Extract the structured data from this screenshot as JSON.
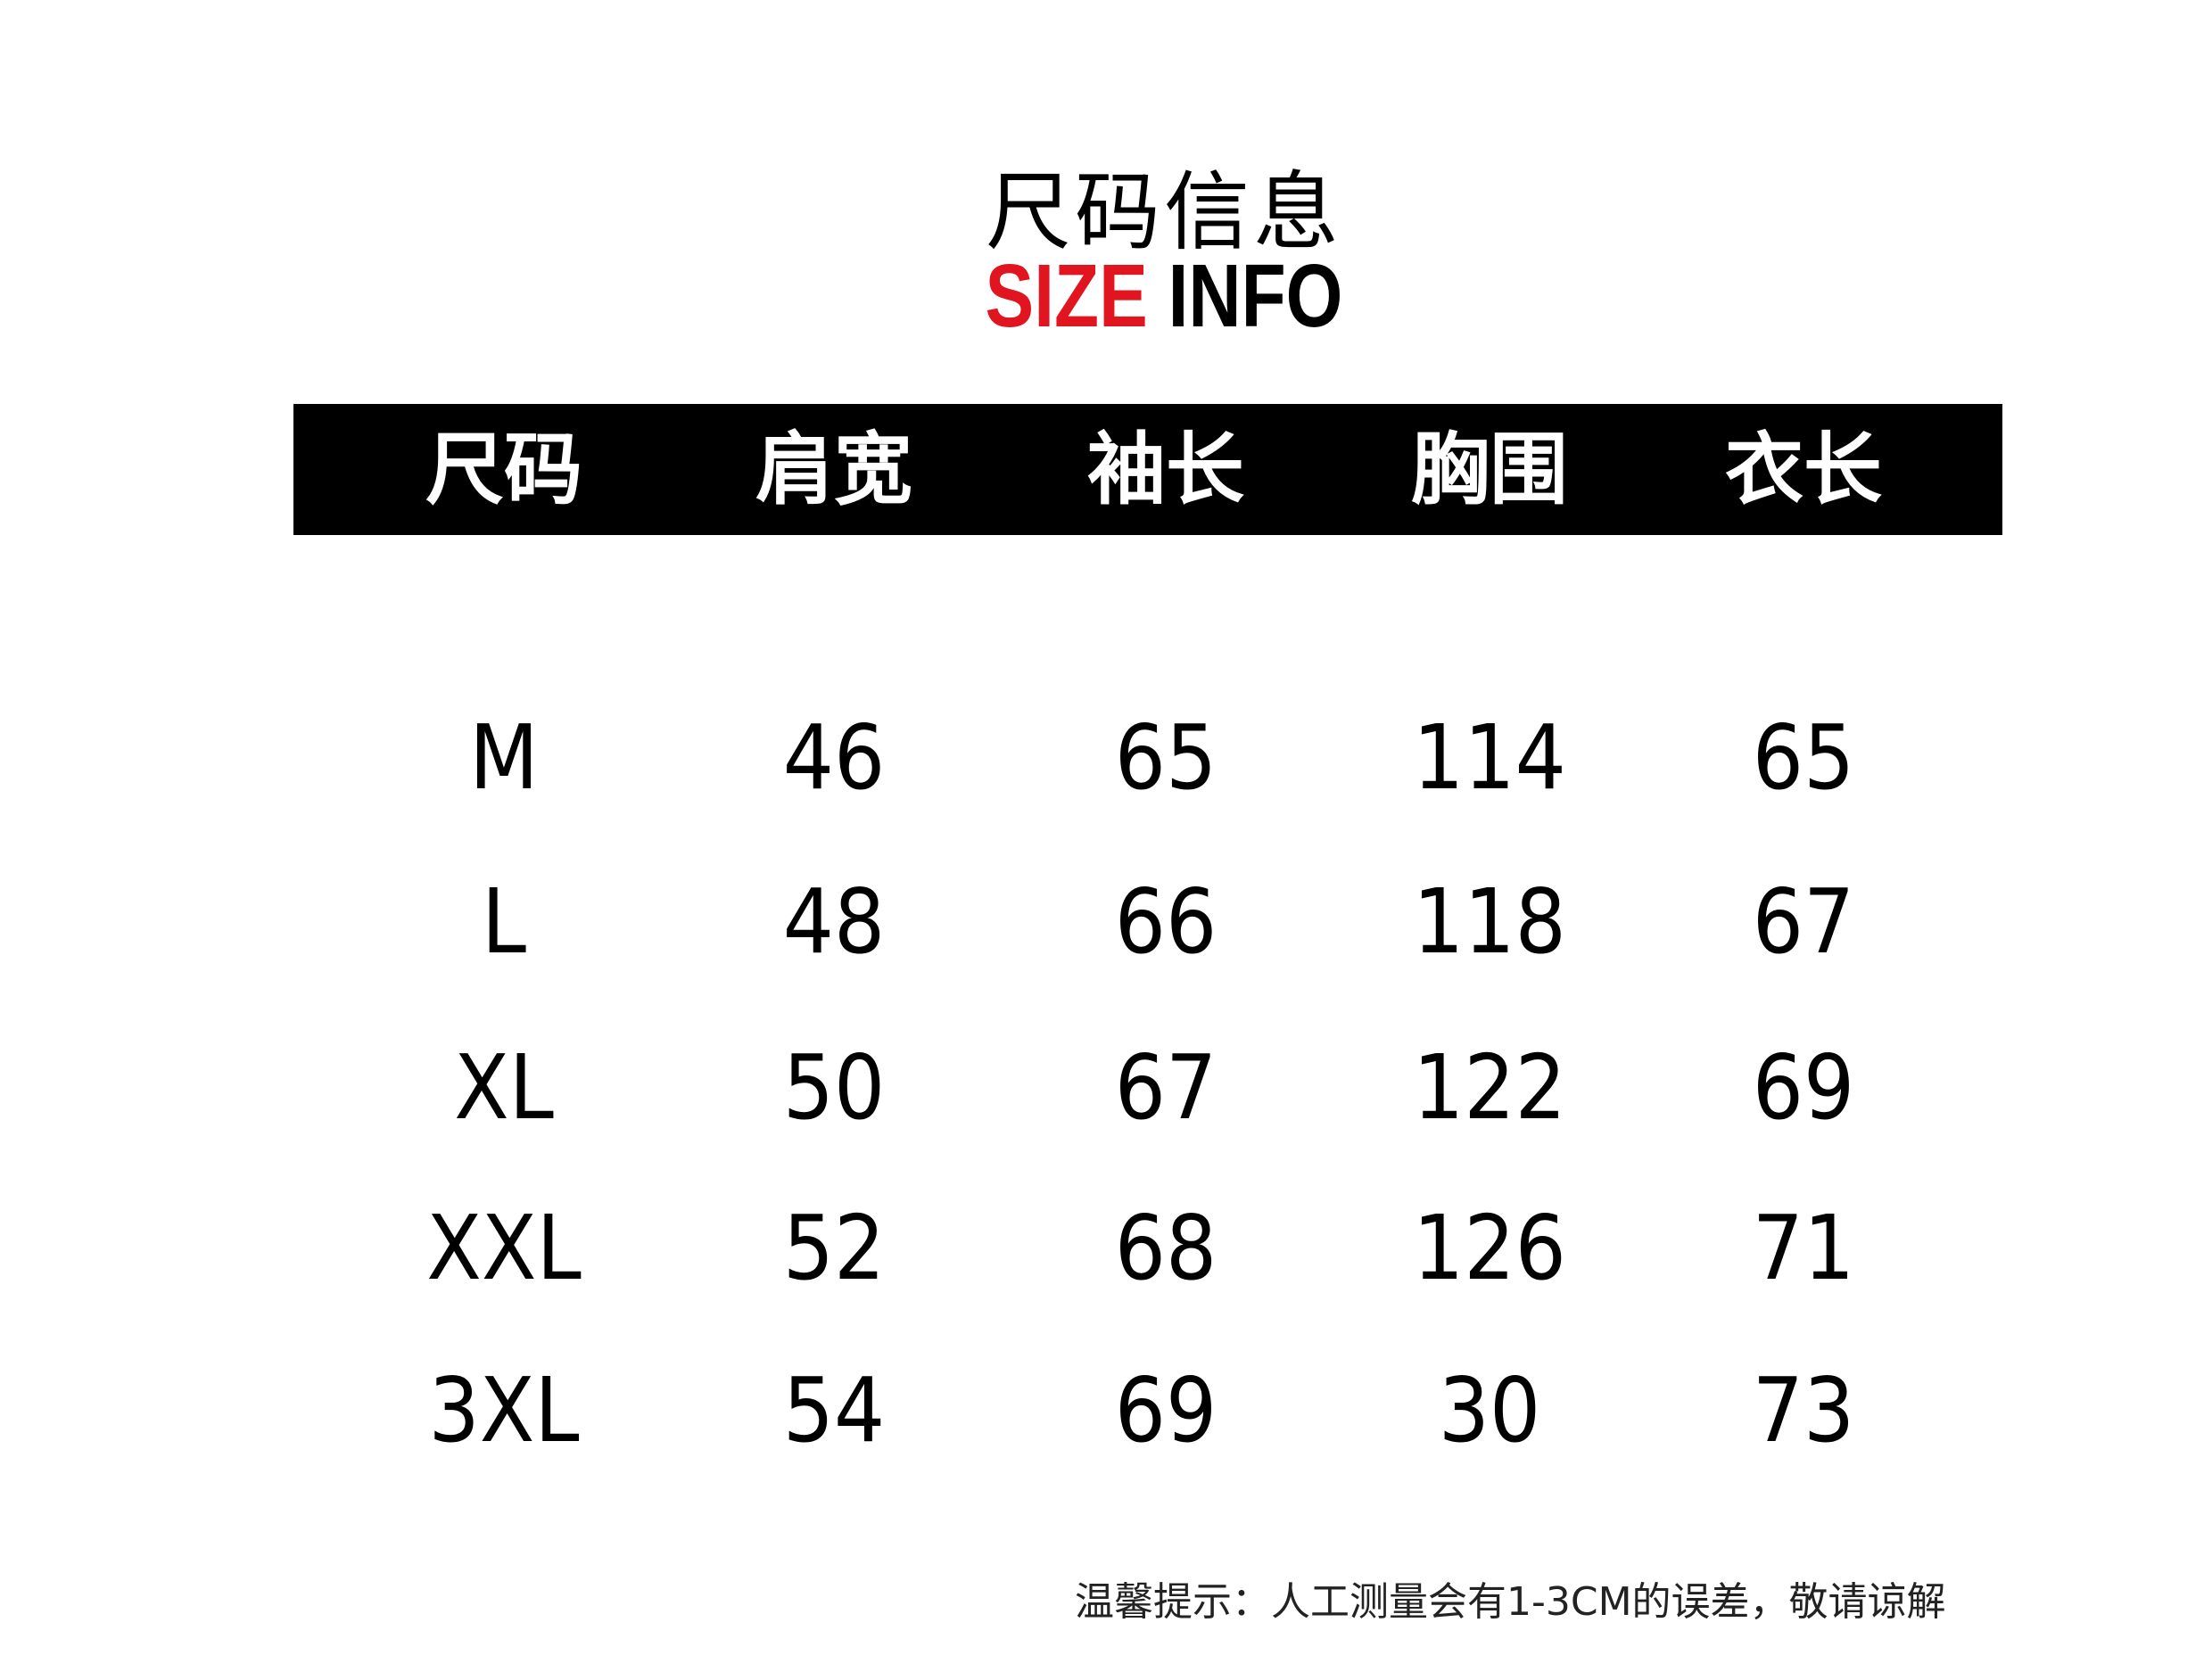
{
  "title_cn": "尺码信息",
  "title_en": {
    "part1": "SIZE",
    "part2": "INFO"
  },
  "colors": {
    "accent": "#e0151f",
    "header_bg": "#000000"
  },
  "table": {
    "headers": [
      "尺码",
      "肩宽",
      "袖长",
      "胸围",
      "衣长"
    ],
    "rows": [
      [
        "M",
        "46",
        "65",
        "114",
        "65"
      ],
      [
        "L",
        "48",
        "66",
        "118",
        "67"
      ],
      [
        "XL",
        "50",
        "67",
        "122",
        "69"
      ],
      [
        "XXL",
        "52",
        "68",
        "126",
        "71"
      ],
      [
        "3XL",
        "54",
        "69",
        "30",
        "73"
      ]
    ]
  },
  "footer_note": "温馨提示：人工测量会有1-3CM的误差，敬请谅解"
}
